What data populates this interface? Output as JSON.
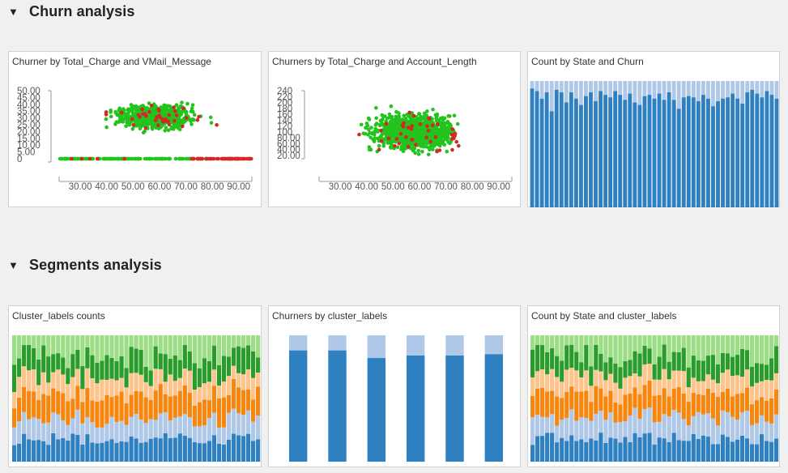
{
  "sections": [
    {
      "title": "Churn analysis"
    },
    {
      "title": "Segments analysis"
    }
  ],
  "cards": {
    "vmail": {
      "title": "Churner by Total_Charge and VMail_Message"
    },
    "acct": {
      "title": "Churners by Total_Charge and Account_Length"
    },
    "state_churn": {
      "title": "Count by State and Churn"
    },
    "cluster_counts": {
      "title": "Cluster_labels counts"
    },
    "churn_cluster": {
      "title": "Churners by cluster_labels"
    },
    "state_cluster": {
      "title": "Count by State and cluster_labels"
    }
  },
  "colors": {
    "churn_yes": "#d62728",
    "churn_no": "#22c41d",
    "dark_blue": "#2e80c0",
    "light_blue": "#b0c8e8",
    "orange": "#f5860f",
    "light_orange": "#fdc48c",
    "green": "#2a9c2a",
    "light_green": "#9bde86"
  },
  "chart_data": [
    {
      "id": "vmail",
      "type": "scatter",
      "title": "Churner by Total_Charge and VMail_Message",
      "x_ticks": [
        "30.00",
        "40.00",
        "50.00",
        "60.00",
        "70.00",
        "80.00",
        "90.00"
      ],
      "y_ticks": [
        "0",
        "5.00",
        "10.00",
        "15.00",
        "20.00",
        "25.00",
        "30.00",
        "35.00",
        "40.00",
        "45.00",
        "50.00"
      ],
      "xlim": [
        22,
        95
      ],
      "ylim": [
        0,
        52
      ],
      "series": [
        {
          "name": "False",
          "color": "#22c41d"
        },
        {
          "name": "True",
          "color": "#d62728"
        }
      ]
    },
    {
      "id": "acct",
      "type": "scatter",
      "title": "Churners by Total_Charge and Account_Length",
      "x_ticks": [
        "30.00",
        "40.00",
        "50.00",
        "60.00",
        "70.00",
        "80.00",
        "90.00"
      ],
      "y_ticks": [
        "20.00",
        "40.00",
        "60.00",
        "80.00",
        "100",
        "120",
        "140",
        "160",
        "180",
        "200",
        "220",
        "240"
      ],
      "xlim": [
        22,
        95
      ],
      "ylim": [
        15,
        245
      ],
      "series": [
        {
          "name": "False",
          "color": "#22c41d"
        },
        {
          "name": "True",
          "color": "#d62728"
        }
      ]
    },
    {
      "id": "state_churn",
      "type": "bar",
      "title": "Count by State and Churn",
      "stacked": true,
      "normalized": true,
      "series": [
        {
          "name": "False",
          "values": [
            0.94,
            0.92,
            0.86,
            0.91,
            0.76,
            0.93,
            0.91,
            0.83,
            0.91,
            0.86,
            0.81,
            0.88,
            0.91,
            0.84,
            0.92,
            0.89,
            0.87,
            0.92,
            0.89,
            0.85,
            0.9,
            0.83,
            0.81,
            0.88,
            0.89,
            0.86,
            0.9,
            0.85,
            0.91,
            0.85,
            0.78,
            0.87,
            0.88,
            0.87,
            0.84,
            0.89,
            0.86,
            0.8,
            0.84,
            0.86,
            0.87,
            0.9,
            0.86,
            0.82,
            0.91,
            0.93,
            0.9,
            0.87,
            0.92,
            0.89,
            0.86
          ],
          "color": "#2e80c0"
        },
        {
          "name": "True",
          "color": "#b0c8e8"
        }
      ]
    },
    {
      "id": "cluster_counts",
      "type": "bar",
      "title": "Cluster_labels counts",
      "stacked": true,
      "normalized": true,
      "n_bars": 51
    },
    {
      "id": "churn_cluster",
      "type": "bar",
      "title": "Churners by cluster_labels",
      "stacked": true,
      "normalized": true,
      "series": [
        {
          "name": "False",
          "values": [
            0.88,
            0.88,
            0.82,
            0.84,
            0.84,
            0.85
          ],
          "color": "#2e80c0"
        },
        {
          "name": "True",
          "color": "#b0c8e8"
        }
      ]
    },
    {
      "id": "state_cluster",
      "type": "bar",
      "title": "Count by State and cluster_labels",
      "stacked": true,
      "normalized": true,
      "n_bars": 51
    }
  ]
}
